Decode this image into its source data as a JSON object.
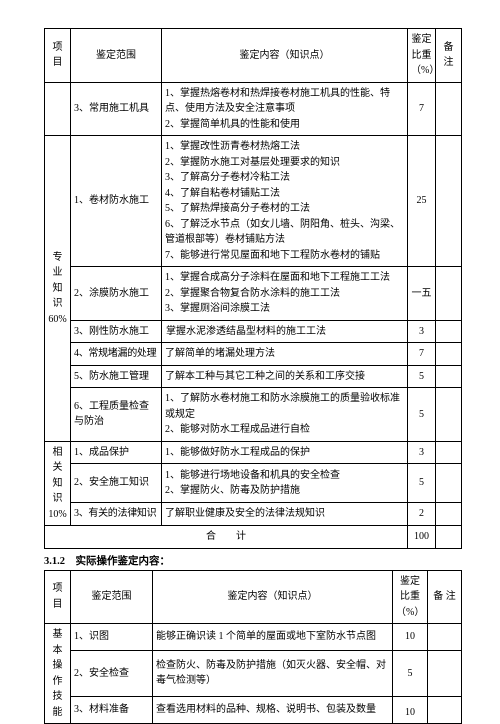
{
  "table1": {
    "headers": {
      "project": "项目",
      "scope": "鉴定范围",
      "content": "鉴定内容（知识点）",
      "ratio_l1": "鉴定",
      "ratio_l2": "比重",
      "ratio_l3": "（%）",
      "remark": "备注"
    },
    "row2_scope": "3、常用施工机具",
    "row2_c1": "1、掌握热熔卷材和热焊接卷材施工机具的性能、特点、使用方法及安全注意事项",
    "row2_c2": "2、掌握简单机具的性能和使用",
    "row2_ratio": "7",
    "groupA_label": "专业知识60%",
    "a1_scope": "1、卷材防水施工",
    "a1_c1": "1、掌握改性沥青卷材热熔工法",
    "a1_c2": "2、掌握防水施工对基层处理要求的知识",
    "a1_c3": "3、了解高分子卷材冷粘工法",
    "a1_c4": "4、了解自粘卷材铺贴工法",
    "a1_c5": "5、了解热焊接高分子卷材的工法",
    "a1_c6": "6、了解泛水节点（如女儿墙、阴阳角、桩头、沟梁、管道根部等）卷材铺贴方法",
    "a1_c7": "7、能够进行常见屋面和地下工程防水卷材的铺贴",
    "a1_ratio": "25",
    "a2_scope": "2、涂膜防水施工",
    "a2_c1": "1、掌握合成高分子涂料在屋面和地下工程施工工法",
    "a2_c2": "2、掌握聚合物复合防水涂料的施工工法",
    "a2_c3": "3、掌握厕浴间涂膜工法",
    "a2_ratio": "一五",
    "a3_scope": "3、刚性防水施工",
    "a3_content": "掌握水泥渗透结晶型材料的施工工法",
    "a3_ratio": "3",
    "a4_scope": "4、常规堵漏的处理",
    "a4_content": "了解简单的堵漏处理方法",
    "a4_ratio": "7",
    "a5_scope": "5、防水施工管理",
    "a5_content": "了解本工种与其它工种之间的关系和工序交接",
    "a5_ratio": "5",
    "a6_scope": "6、工程质量检查与防治",
    "a6_c1": "1、了解防水卷材施工和防水涂膜施工的质量验收标准或规定",
    "a6_c2": "2、能够对防水工程成品进行自检",
    "a6_ratio": "5",
    "groupB_label": "相关知识10%",
    "b1_scope": "1、成品保护",
    "b1_content": "1、能够做好防水工程成品的保护",
    "b1_ratio": "3",
    "b2_scope": "2、安全施工知识",
    "b2_c1": "1、能够进行场地设备和机具的安全检查",
    "b2_c2": "2、掌握防火、防毒及防护措施",
    "b2_ratio": "5",
    "b3_scope": "3、有关的法律知识",
    "b3_content": "了解职业健康及安全的法律法规知识",
    "b3_ratio": "2",
    "total_label": "合　　计",
    "total_value": "100"
  },
  "section2_title": "3.1.2　实际操作鉴定内容：",
  "table2": {
    "headers": {
      "project": "项目",
      "scope": "鉴定范围",
      "content": "鉴定内容（知识点）",
      "ratio_l1": "鉴定",
      "ratio_l2": "比重",
      "ratio_l3": "（%）",
      "remark": "备 注"
    },
    "group_label": "基 本操 作技 能",
    "r1_scope": "1、识图",
    "r1_content": "能够正确识读 1 个简单的屋面或地下室防水节点图",
    "r1_ratio": "10",
    "r2_scope": "2、安全检查",
    "r2_content": "检查防火、防毒及防护措施（如灭火器、安全帽、对毒气检测等）",
    "r2_ratio": "5",
    "r3_scope": "3、材料准备",
    "r3_content": "查看选用材料的品种、规格、说明书、包装及数量",
    "r3_ratio": "10"
  }
}
